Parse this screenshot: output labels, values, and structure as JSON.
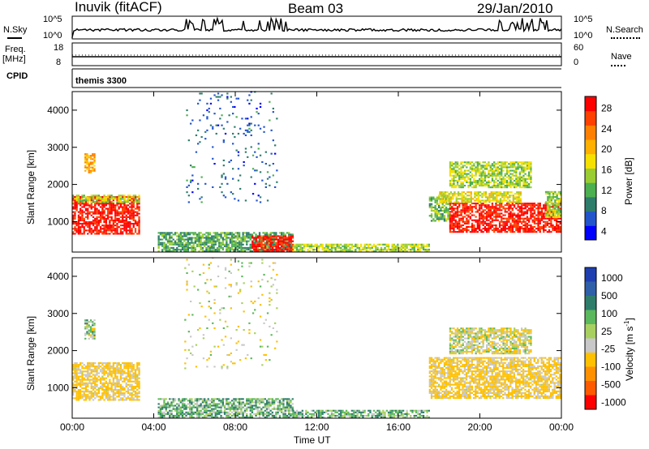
{
  "header": {
    "station": "Inuvik (fitACF)",
    "beam": "Beam 03",
    "date": "29/Jan/2010"
  },
  "strip_labels": {
    "nsky": "N.Sky",
    "nsky_ticks": [
      "10^5",
      "10^0"
    ],
    "nsearch": "N.Search",
    "nsearch_ticks": [
      "10^5",
      "10^0"
    ],
    "freq": "Freq.",
    "freq_unit": "[MHz]",
    "freq_ticks": [
      "18",
      "8"
    ],
    "nave": "Nave",
    "nave_ticks": [
      "60",
      "0"
    ],
    "cpid": "CPID",
    "cpid_value": "themis 3300"
  },
  "colors": {
    "power_scale": [
      "#0000ff",
      "#2255cc",
      "#2e7d6b",
      "#4caf50",
      "#9acd32",
      "#f5e000",
      "#ffb000",
      "#ff8000",
      "#ff4000",
      "#ff0000"
    ],
    "velocity_scale": [
      "#1f3fb0",
      "#2f5fa8",
      "#2e7d6b",
      "#5cb85c",
      "#a8d060",
      "#c8c8c8",
      "#ffc000",
      "#ff9000",
      "#ff5a00",
      "#ff0000"
    ]
  },
  "chart_data": [
    {
      "type": "heatmap",
      "panel": "power",
      "xlabel": "Time UT",
      "ylabel": "Slant Range [km]",
      "xlim": [
        "00:00",
        "24:00"
      ],
      "ylim": [
        180,
        4500
      ],
      "x_ticks": [
        "00:00",
        "04:00",
        "08:00",
        "12:00",
        "16:00",
        "20:00",
        "00:00"
      ],
      "y_ticks": [
        1000,
        2000,
        3000,
        4000
      ],
      "colorbar_label": "Power [dB]",
      "colorbar_ticks": [
        "28",
        "24",
        "20",
        "16",
        "12",
        "8",
        "4"
      ],
      "colorbar_range": [
        0,
        30
      ],
      "regions": [
        {
          "t0": 0.0,
          "t1": 3.3,
          "r0": 650,
          "r1": 1650,
          "level": 28
        },
        {
          "t0": 0.0,
          "t1": 3.3,
          "r0": 1500,
          "r1": 1700,
          "level": 14
        },
        {
          "t0": 0.6,
          "t1": 1.1,
          "r0": 2300,
          "r1": 2800,
          "level": 20
        },
        {
          "t0": 4.2,
          "t1": 10.8,
          "r0": 180,
          "r1": 700,
          "level": 10
        },
        {
          "t0": 8.8,
          "t1": 10.8,
          "r0": 180,
          "r1": 600,
          "level": 28
        },
        {
          "t0": 10.8,
          "t1": 17.5,
          "r0": 180,
          "r1": 400,
          "level": 14
        },
        {
          "t0": 17.5,
          "t1": 18.5,
          "r0": 1000,
          "r1": 1700,
          "level": 12
        },
        {
          "t0": 18.5,
          "t1": 23.9,
          "r0": 700,
          "r1": 1500,
          "level": 28
        },
        {
          "t0": 18.0,
          "t1": 22.0,
          "r0": 1500,
          "r1": 1800,
          "level": 16
        },
        {
          "t0": 18.5,
          "t1": 22.5,
          "r0": 1900,
          "r1": 2600,
          "level": 14
        },
        {
          "t0": 5.5,
          "t1": 10.0,
          "r0": 1500,
          "r1": 4500,
          "level": 6
        },
        {
          "t0": 23.2,
          "t1": 24.0,
          "r0": 1100,
          "r1": 1800,
          "level": 14
        }
      ]
    },
    {
      "type": "heatmap",
      "panel": "velocity",
      "xlabel": "Time UT",
      "ylabel": "Slant Range [km]",
      "xlim": [
        "00:00",
        "24:00"
      ],
      "ylim": [
        180,
        4500
      ],
      "x_ticks": [
        "00:00",
        "04:00",
        "08:00",
        "12:00",
        "16:00",
        "20:00",
        "00:00"
      ],
      "y_ticks": [
        1000,
        2000,
        3000,
        4000
      ],
      "colorbar_label": "Velocity [m s^-1]",
      "colorbar_ticks": [
        "1000",
        "500",
        "100",
        "25",
        "-25",
        "-100",
        "-500",
        "-1000"
      ],
      "regions": [
        {
          "t0": 0.0,
          "t1": 3.3,
          "r0": 650,
          "r1": 1650,
          "value": -150
        },
        {
          "t0": 0.6,
          "t1": 1.1,
          "r0": 2300,
          "r1": 2800,
          "value": 0
        },
        {
          "t0": 4.2,
          "t1": 10.8,
          "r0": 180,
          "r1": 700,
          "value": 60
        },
        {
          "t0": 10.8,
          "t1": 17.5,
          "r0": 180,
          "r1": 400,
          "value": 60
        },
        {
          "t0": 17.5,
          "t1": 23.9,
          "r0": 700,
          "r1": 1800,
          "value": -150
        },
        {
          "t0": 18.5,
          "t1": 22.5,
          "r0": 1900,
          "r1": 2600,
          "value": -60
        },
        {
          "t0": 5.5,
          "t1": 10.0,
          "r0": 1500,
          "r1": 4500,
          "value": -60
        }
      ]
    }
  ]
}
